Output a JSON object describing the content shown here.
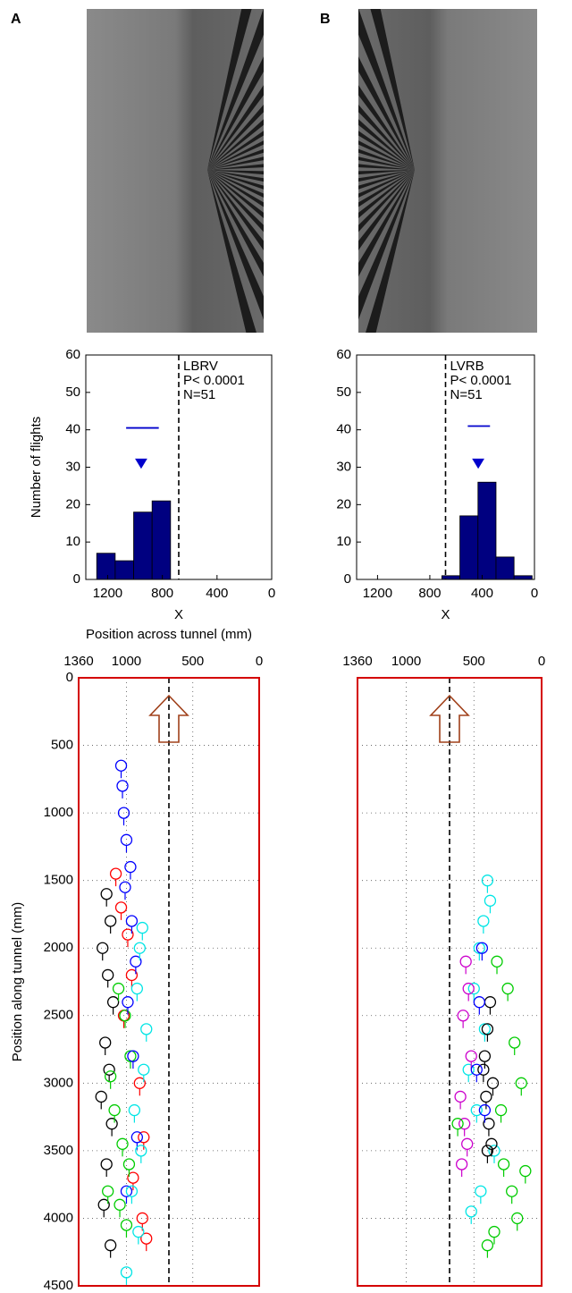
{
  "panel_labels": [
    "A",
    "B"
  ],
  "chart_data": [
    {
      "type": "histogram",
      "ylabel": "Number of flights",
      "xlabel": "X",
      "annotations": [
        "LBRV",
        "P< 0.0001",
        "N=51"
      ],
      "bins": [
        1280,
        1145,
        1010,
        875,
        740
      ],
      "counts": [
        7,
        5,
        18,
        21
      ],
      "color": "#000080",
      "xlim": [
        1360,
        0
      ],
      "xticks": [
        1200,
        800,
        400,
        0
      ],
      "ylim": [
        0,
        60
      ],
      "yticks": [
        0,
        10,
        20,
        30,
        40,
        50,
        60
      ],
      "reference_line": 680,
      "mean_marker": {
        "x": 955,
        "y": 31
      },
      "spread": {
        "x": [
          1065,
          826
        ],
        "y": 40.5
      },
      "marker_color": "#0000cc"
    },
    {
      "type": "histogram",
      "xlabel": "X",
      "annotations": [
        "LVRB",
        "P< 0.0001",
        "N=51"
      ],
      "bins": [
        708,
        570,
        432,
        294,
        156,
        18
      ],
      "counts": [
        1,
        17,
        26,
        6,
        1
      ],
      "color": "#000080",
      "xlim": [
        1360,
        0
      ],
      "xticks": [
        1200,
        800,
        400,
        0
      ],
      "ylim": [
        0,
        60
      ],
      "yticks": [
        0,
        10,
        20,
        30,
        40,
        50,
        60
      ],
      "reference_line": 680,
      "mean_marker": {
        "x": 430,
        "y": 31
      },
      "spread": {
        "x": [
          510,
          340
        ],
        "y": 41
      },
      "marker_color": "#0000cc"
    },
    {
      "type": "scatter",
      "xlabel": "Position across tunnel (mm)",
      "ylabel": "Position along tunnel (mm)",
      "xlim": [
        1360,
        0
      ],
      "xticks": [
        1360,
        1000,
        500,
        0
      ],
      "ylim": [
        0,
        4500
      ],
      "yticks": [
        0,
        500,
        1000,
        1500,
        2000,
        2500,
        3000,
        3500,
        4000,
        4500
      ],
      "y_inverted": true,
      "show_ytick_labels": true,
      "grid": true,
      "reference_line": 680,
      "series": [
        {
          "color": "#000000",
          "x": [
            1150,
            1120,
            1180,
            1140,
            1100,
            1160,
            1130,
            1190,
            1110,
            1150,
            1170,
            1120
          ],
          "y": [
            1600,
            1800,
            2000,
            2200,
            2400,
            2700,
            2900,
            3100,
            3300,
            3600,
            3900,
            4200
          ]
        },
        {
          "color": "#ff0000",
          "x": [
            1080,
            1040,
            990,
            960,
            1020,
            900,
            870,
            950,
            880,
            850
          ],
          "y": [
            1450,
            1700,
            1900,
            2200,
            2500,
            3000,
            3400,
            3700,
            4000,
            4150
          ]
        },
        {
          "color": "#00cc00",
          "x": [
            1060,
            1010,
            970,
            1120,
            1090,
            1030,
            980,
            1140,
            1050,
            1000
          ],
          "y": [
            2300,
            2500,
            2800,
            2950,
            3200,
            3450,
            3600,
            3800,
            3900,
            4050
          ]
        },
        {
          "color": "#0000ff",
          "x": [
            1040,
            1030,
            1020,
            1000,
            970,
            1010,
            960,
            930,
            990,
            950,
            920,
            1000
          ],
          "y": [
            650,
            800,
            1000,
            1200,
            1400,
            1550,
            1800,
            2100,
            2400,
            2800,
            3400,
            3800
          ]
        },
        {
          "color": "#00e5e5",
          "x": [
            880,
            900,
            920,
            850,
            870,
            940,
            890,
            960,
            910,
            1000
          ],
          "y": [
            1850,
            2000,
            2300,
            2600,
            2900,
            3200,
            3500,
            3800,
            4100,
            4400
          ]
        }
      ]
    },
    {
      "type": "scatter",
      "xlim": [
        1360,
        0
      ],
      "xticks": [
        1360,
        1000,
        500,
        0
      ],
      "ylim": [
        0,
        4500
      ],
      "yticks": [
        0,
        500,
        1000,
        1500,
        2000,
        2500,
        3000,
        3500,
        4000,
        4500
      ],
      "y_inverted": true,
      "show_ytick_labels": false,
      "grid": true,
      "reference_line": 680,
      "series": [
        {
          "color": "#00e5e5",
          "x": [
            400,
            380,
            430,
            460,
            500,
            420,
            540,
            480,
            350,
            450,
            520
          ],
          "y": [
            1500,
            1650,
            1800,
            2000,
            2300,
            2600,
            2900,
            3200,
            3500,
            3800,
            3950
          ]
        },
        {
          "color": "#cc00cc",
          "x": [
            560,
            540,
            580,
            520,
            600,
            570,
            550,
            590
          ],
          "y": [
            2100,
            2300,
            2500,
            2800,
            3100,
            3300,
            3450,
            3600
          ]
        },
        {
          "color": "#000000",
          "x": [
            380,
            400,
            420,
            360,
            410,
            390,
            370,
            430,
            400
          ],
          "y": [
            2400,
            2600,
            2800,
            3000,
            3100,
            3300,
            3450,
            2900,
            3500
          ]
        },
        {
          "color": "#00cc00",
          "x": [
            620,
            330,
            250,
            200,
            300,
            150,
            280,
            220,
            180,
            350,
            120,
            400
          ],
          "y": [
            3300,
            2100,
            2300,
            2700,
            3200,
            3000,
            3600,
            3800,
            4000,
            4100,
            3650,
            4200
          ]
        },
        {
          "color": "#0000ff",
          "x": [
            440,
            460,
            480,
            420
          ],
          "y": [
            2000,
            2400,
            2900,
            3200
          ]
        }
      ]
    }
  ]
}
